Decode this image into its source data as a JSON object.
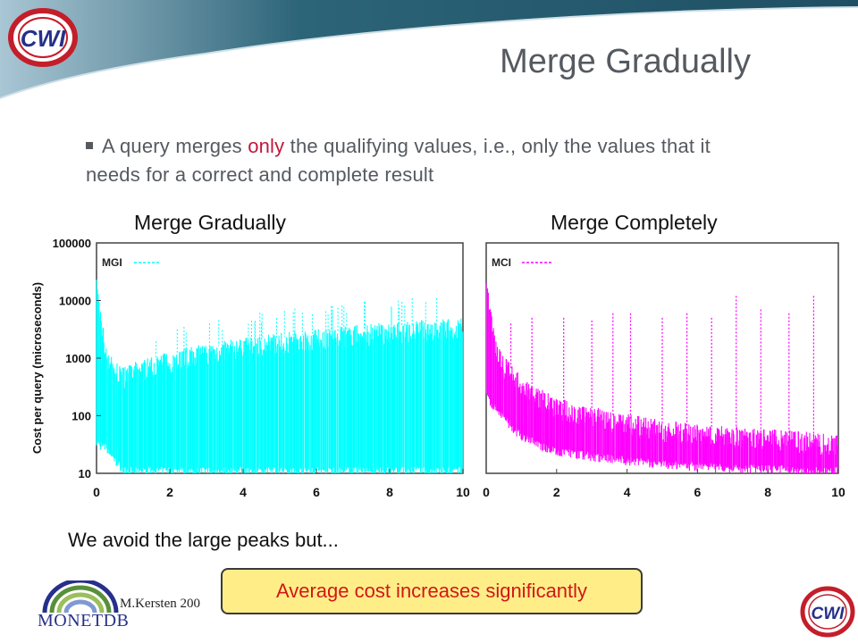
{
  "slide": {
    "title": "Merge Gradually",
    "bullet": {
      "before": "A query merges ",
      "highlight": "only",
      "after": " the qualifying values, i.e., only the values that it needs for a correct and complete result"
    },
    "note": "We avoid the large peaks but...",
    "callout": "Average cost increases significantly",
    "footer": "M.Kersten 200",
    "logos": {
      "top": "CWI",
      "bottom": "CWI",
      "monetdb": "MONETDB"
    },
    "colors": {
      "header_teal": "#2c6478",
      "cyan": "#00ffff",
      "magenta": "#ff00ff",
      "callout_fill": "#ffee88",
      "callout_text": "#d01818",
      "highlight": "#c0183c"
    }
  },
  "chart_data": [
    {
      "type": "line",
      "title": "Merge Gradually",
      "ylabel": "Cost per query (microseconds)",
      "yscale": "log",
      "ylim": [
        10,
        100000
      ],
      "xlim": [
        0,
        10
      ],
      "x_ticks": [
        "0",
        "2",
        "4",
        "6",
        "8",
        "10"
      ],
      "y_ticks": [
        "10",
        "100",
        "1000",
        "10000",
        "100000"
      ],
      "legend": "top-left",
      "series": [
        {
          "name": "MGI",
          "color": "#00ffff",
          "x": [
            0,
            0.25,
            0.5,
            0.75,
            1,
            1.5,
            2,
            3,
            4,
            5,
            6,
            7,
            8,
            9,
            10
          ],
          "y_upper": [
            20000,
            1500,
            700,
            600,
            700,
            900,
            1100,
            1500,
            1900,
            2300,
            2700,
            3100,
            3500,
            3900,
            4200
          ],
          "y_lower": [
            30,
            25,
            15,
            10,
            10,
            10,
            10,
            10,
            10,
            10,
            10,
            10,
            10,
            10,
            10
          ]
        }
      ]
    },
    {
      "type": "line",
      "title": "Merge Completely",
      "ylabel": "",
      "yscale": "log",
      "ylim": [
        10,
        100000
      ],
      "xlim": [
        0,
        10
      ],
      "x_ticks": [
        "0",
        "2",
        "4",
        "6",
        "8",
        "10"
      ],
      "legend": "top-left",
      "series": [
        {
          "name": "MCI",
          "color": "#ff00ff",
          "x": [
            0,
            0.25,
            0.5,
            1,
            1.5,
            2,
            3,
            4,
            5,
            6,
            7,
            8,
            9,
            10
          ],
          "y_upper": [
            20000,
            2000,
            900,
            400,
            250,
            170,
            120,
            90,
            70,
            60,
            55,
            50,
            45,
            40
          ],
          "y_lower": [
            200,
            120,
            80,
            40,
            28,
            22,
            18,
            15,
            13,
            12,
            11,
            11,
            10,
            10
          ],
          "peaks": [
            {
              "x": 0.7,
              "y": 4000
            },
            {
              "x": 1.3,
              "y": 5000
            },
            {
              "x": 2.2,
              "y": 5000
            },
            {
              "x": 3.0,
              "y": 4500
            },
            {
              "x": 3.6,
              "y": 6000
            },
            {
              "x": 4.1,
              "y": 6000
            },
            {
              "x": 5.0,
              "y": 5000
            },
            {
              "x": 5.7,
              "y": 6000
            },
            {
              "x": 6.4,
              "y": 5000
            },
            {
              "x": 7.1,
              "y": 12000
            },
            {
              "x": 7.8,
              "y": 7000
            },
            {
              "x": 8.6,
              "y": 6000
            },
            {
              "x": 9.3,
              "y": 12000
            }
          ]
        }
      ]
    }
  ]
}
